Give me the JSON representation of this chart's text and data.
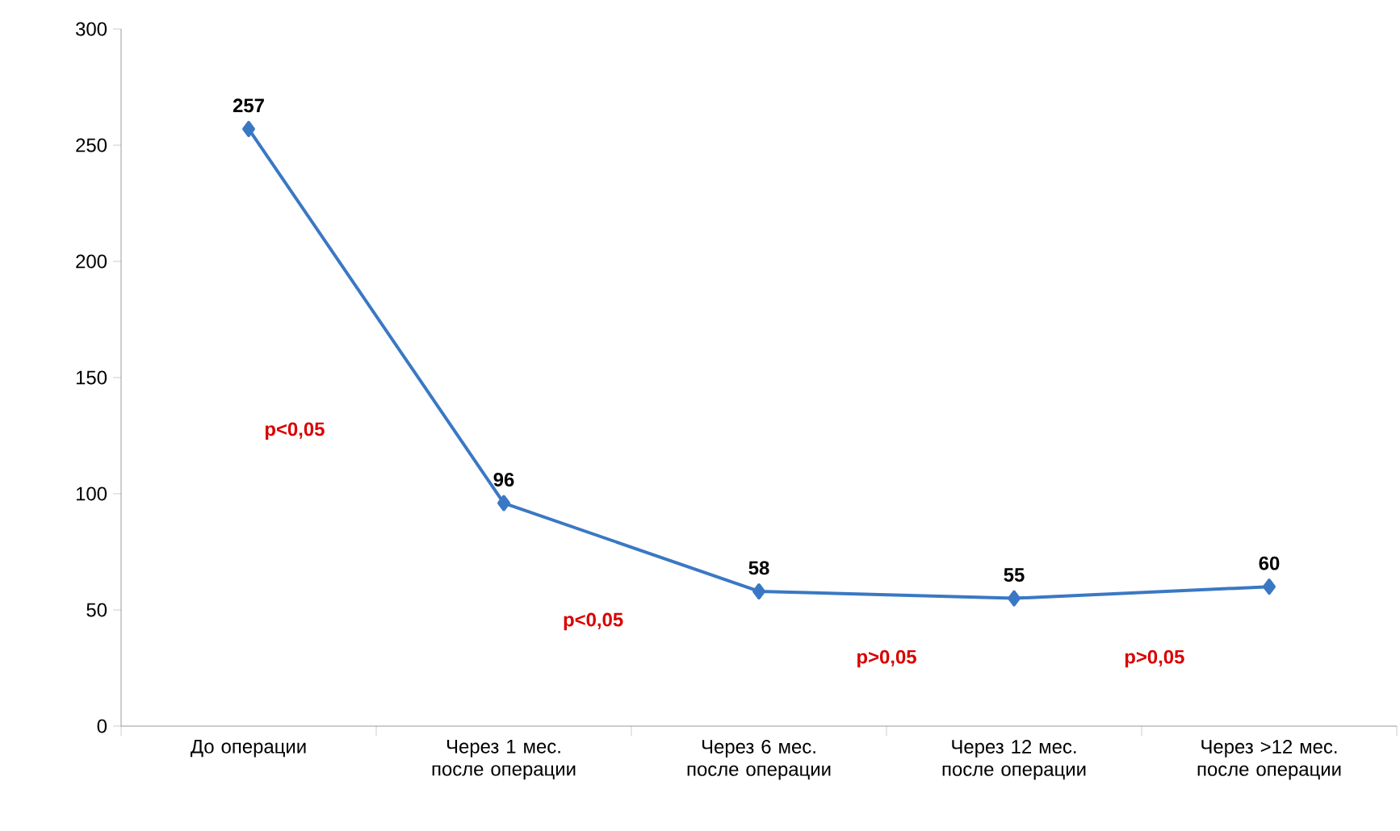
{
  "chart_data": {
    "type": "line",
    "categories": [
      "До операции",
      "Через 1 мес. после операции",
      "Через 6 мес. после операции",
      "Через 12 мес. после операции",
      "Через >12 мес. после операции"
    ],
    "values": [
      257,
      96,
      58,
      55,
      60
    ],
    "color": "#3a78c3",
    "marker": "diamond",
    "data_labels": true,
    "ylim": [
      0,
      300
    ],
    "yticks": [
      0,
      50,
      100,
      150,
      200,
      250,
      300
    ],
    "grid": false,
    "annotations": [
      "p<0,05",
      "p<0,05",
      "p>0,05",
      "p>0,05"
    ]
  }
}
